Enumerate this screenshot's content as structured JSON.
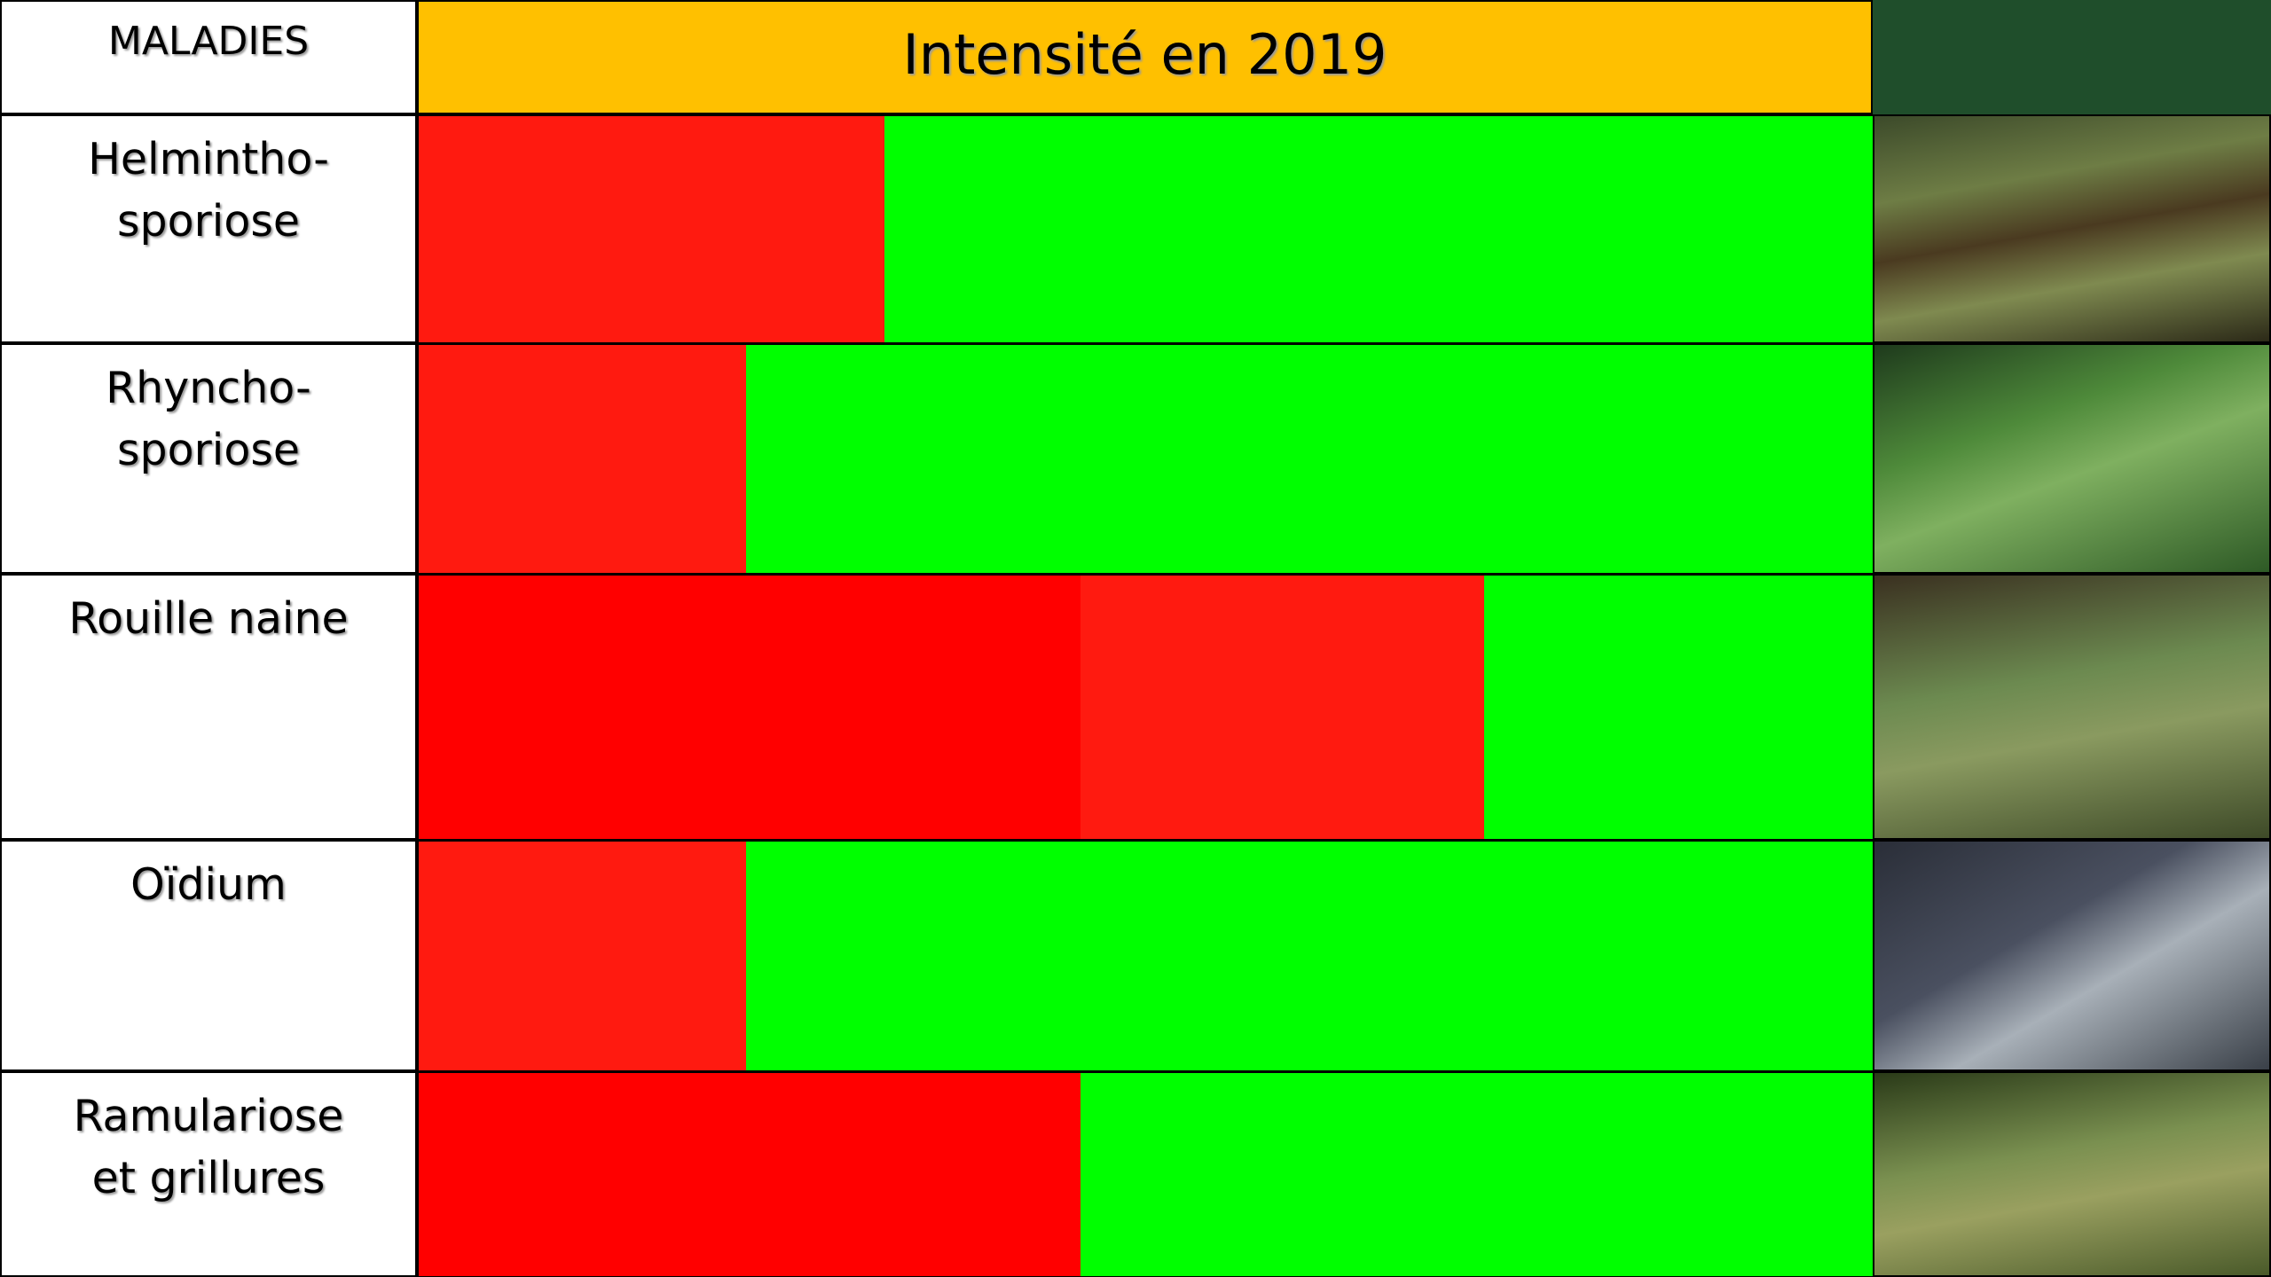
{
  "header": {
    "first_column": "MALADIES",
    "title": "Intensité en 2019"
  },
  "rows": [
    {
      "label": "Helmintho-\nsporiose"
    },
    {
      "label": "Rhyncho-\nsporiose"
    },
    {
      "label": "Rouille naine"
    },
    {
      "label": "Oïdium"
    },
    {
      "label": "Ramulariose\net grillures"
    }
  ]
}
